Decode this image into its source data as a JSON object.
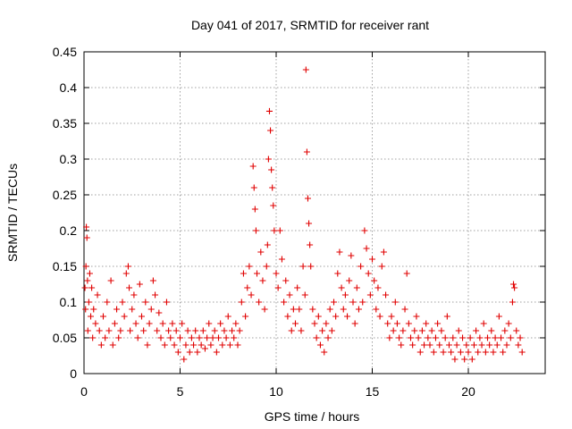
{
  "chart_data": {
    "type": "scatter",
    "title": "Day 041 of 2017, SRMTID for receiver rant",
    "xlabel": "GPS time / hours",
    "ylabel": "SRMTID / TECUs",
    "xlim": [
      0,
      24
    ],
    "ylim": [
      0,
      0.45
    ],
    "x_ticks": [
      0,
      5,
      10,
      15,
      20
    ],
    "x_tick_labels": [
      "0",
      "5",
      "10",
      "15",
      "20"
    ],
    "y_ticks": [
      0,
      0.05,
      0.1,
      0.15,
      0.2,
      0.25,
      0.3,
      0.35,
      0.4,
      0.45
    ],
    "y_tick_labels": [
      "0",
      "0.05",
      "0.1",
      "0.15",
      "0.2",
      "0.25",
      "0.3",
      "0.35",
      "0.4",
      "0.45"
    ],
    "grid": true,
    "marker": "plus",
    "color": "#e00000",
    "series": [
      {
        "name": "SRMTID",
        "points": [
          [
            0.05,
            0.12
          ],
          [
            0.08,
            0.09
          ],
          [
            0.1,
            0.15
          ],
          [
            0.12,
            0.205
          ],
          [
            0.15,
            0.19
          ],
          [
            0.18,
            0.13
          ],
          [
            0.2,
            0.06
          ],
          [
            0.25,
            0.1
          ],
          [
            0.3,
            0.14
          ],
          [
            0.35,
            0.08
          ],
          [
            0.4,
            0.12
          ],
          [
            0.45,
            0.05
          ],
          [
            0.5,
            0.09
          ],
          [
            0.6,
            0.07
          ],
          [
            0.7,
            0.11
          ],
          [
            0.8,
            0.06
          ],
          [
            0.9,
            0.04
          ],
          [
            1.0,
            0.08
          ],
          [
            1.1,
            0.05
          ],
          [
            1.2,
            0.1
          ],
          [
            1.3,
            0.06
          ],
          [
            1.4,
            0.13
          ],
          [
            1.5,
            0.04
          ],
          [
            1.6,
            0.07
          ],
          [
            1.7,
            0.09
          ],
          [
            1.8,
            0.05
          ],
          [
            1.9,
            0.06
          ],
          [
            2.0,
            0.1
          ],
          [
            2.1,
            0.08
          ],
          [
            2.2,
            0.14
          ],
          [
            2.3,
            0.15
          ],
          [
            2.35,
            0.12
          ],
          [
            2.4,
            0.06
          ],
          [
            2.5,
            0.09
          ],
          [
            2.6,
            0.11
          ],
          [
            2.7,
            0.07
          ],
          [
            2.8,
            0.05
          ],
          [
            2.9,
            0.125
          ],
          [
            3.0,
            0.08
          ],
          [
            3.1,
            0.06
          ],
          [
            3.2,
            0.1
          ],
          [
            3.3,
            0.04
          ],
          [
            3.4,
            0.07
          ],
          [
            3.5,
            0.09
          ],
          [
            3.6,
            0.13
          ],
          [
            3.7,
            0.11
          ],
          [
            3.8,
            0.06
          ],
          [
            3.9,
            0.085
          ],
          [
            4.0,
            0.05
          ],
          [
            4.1,
            0.07
          ],
          [
            4.2,
            0.04
          ],
          [
            4.3,
            0.1
          ],
          [
            4.4,
            0.06
          ],
          [
            4.5,
            0.05
          ],
          [
            4.6,
            0.07
          ],
          [
            4.7,
            0.04
          ],
          [
            4.8,
            0.06
          ],
          [
            4.9,
            0.03
          ],
          [
            5.0,
            0.05
          ],
          [
            5.1,
            0.07
          ],
          [
            5.2,
            0.02
          ],
          [
            5.3,
            0.04
          ],
          [
            5.4,
            0.06
          ],
          [
            5.5,
            0.03
          ],
          [
            5.6,
            0.05
          ],
          [
            5.7,
            0.04
          ],
          [
            5.8,
            0.06
          ],
          [
            5.9,
            0.03
          ],
          [
            6.0,
            0.05
          ],
          [
            6.1,
            0.04
          ],
          [
            6.2,
            0.06
          ],
          [
            6.3,
            0.035
          ],
          [
            6.4,
            0.05
          ],
          [
            6.5,
            0.07
          ],
          [
            6.6,
            0.04
          ],
          [
            6.7,
            0.05
          ],
          [
            6.8,
            0.06
          ],
          [
            6.9,
            0.03
          ],
          [
            7.0,
            0.05
          ],
          [
            7.1,
            0.07
          ],
          [
            7.2,
            0.04
          ],
          [
            7.3,
            0.06
          ],
          [
            7.4,
            0.05
          ],
          [
            7.5,
            0.08
          ],
          [
            7.6,
            0.04
          ],
          [
            7.7,
            0.06
          ],
          [
            7.8,
            0.05
          ],
          [
            7.9,
            0.07
          ],
          [
            8.0,
            0.04
          ],
          [
            8.1,
            0.06
          ],
          [
            8.2,
            0.1
          ],
          [
            8.3,
            0.14
          ],
          [
            8.4,
            0.08
          ],
          [
            8.5,
            0.12
          ],
          [
            8.6,
            0.15
          ],
          [
            8.7,
            0.11
          ],
          [
            8.8,
            0.29
          ],
          [
            8.85,
            0.26
          ],
          [
            8.9,
            0.23
          ],
          [
            8.95,
            0.2
          ],
          [
            9.0,
            0.14
          ],
          [
            9.1,
            0.1
          ],
          [
            9.2,
            0.17
          ],
          [
            9.3,
            0.13
          ],
          [
            9.4,
            0.09
          ],
          [
            9.5,
            0.15
          ],
          [
            9.55,
            0.18
          ],
          [
            9.6,
            0.3
          ],
          [
            9.65,
            0.367
          ],
          [
            9.7,
            0.34
          ],
          [
            9.75,
            0.285
          ],
          [
            9.8,
            0.26
          ],
          [
            9.85,
            0.235
          ],
          [
            9.9,
            0.2
          ],
          [
            10.0,
            0.14
          ],
          [
            10.1,
            0.12
          ],
          [
            10.2,
            0.2
          ],
          [
            10.3,
            0.16
          ],
          [
            10.4,
            0.1
          ],
          [
            10.5,
            0.13
          ],
          [
            10.6,
            0.08
          ],
          [
            10.7,
            0.11
          ],
          [
            10.8,
            0.06
          ],
          [
            10.9,
            0.09
          ],
          [
            11.0,
            0.07
          ],
          [
            11.1,
            0.12
          ],
          [
            11.2,
            0.09
          ],
          [
            11.3,
            0.06
          ],
          [
            11.4,
            0.15
          ],
          [
            11.5,
            0.11
          ],
          [
            11.55,
            0.425
          ],
          [
            11.6,
            0.31
          ],
          [
            11.65,
            0.245
          ],
          [
            11.7,
            0.21
          ],
          [
            11.75,
            0.18
          ],
          [
            11.8,
            0.15
          ],
          [
            11.9,
            0.09
          ],
          [
            12.0,
            0.07
          ],
          [
            12.1,
            0.05
          ],
          [
            12.2,
            0.08
          ],
          [
            12.3,
            0.04
          ],
          [
            12.4,
            0.06
          ],
          [
            12.5,
            0.03
          ],
          [
            12.6,
            0.07
          ],
          [
            12.7,
            0.05
          ],
          [
            12.8,
            0.09
          ],
          [
            12.9,
            0.06
          ],
          [
            13.0,
            0.1
          ],
          [
            13.1,
            0.08
          ],
          [
            13.2,
            0.14
          ],
          [
            13.3,
            0.17
          ],
          [
            13.4,
            0.12
          ],
          [
            13.5,
            0.09
          ],
          [
            13.6,
            0.11
          ],
          [
            13.7,
            0.08
          ],
          [
            13.8,
            0.13
          ],
          [
            13.9,
            0.165
          ],
          [
            14.0,
            0.1
          ],
          [
            14.1,
            0.07
          ],
          [
            14.2,
            0.12
          ],
          [
            14.3,
            0.09
          ],
          [
            14.4,
            0.15
          ],
          [
            14.5,
            0.1
          ],
          [
            14.6,
            0.2
          ],
          [
            14.7,
            0.175
          ],
          [
            14.8,
            0.14
          ],
          [
            14.9,
            0.11
          ],
          [
            15.0,
            0.16
          ],
          [
            15.1,
            0.13
          ],
          [
            15.2,
            0.09
          ],
          [
            15.3,
            0.12
          ],
          [
            15.4,
            0.08
          ],
          [
            15.5,
            0.15
          ],
          [
            15.6,
            0.17
          ],
          [
            15.7,
            0.11
          ],
          [
            15.8,
            0.07
          ],
          [
            15.9,
            0.05
          ],
          [
            16.0,
            0.08
          ],
          [
            16.1,
            0.06
          ],
          [
            16.2,
            0.1
          ],
          [
            16.3,
            0.07
          ],
          [
            16.4,
            0.05
          ],
          [
            16.5,
            0.04
          ],
          [
            16.6,
            0.06
          ],
          [
            16.7,
            0.09
          ],
          [
            16.8,
            0.14
          ],
          [
            16.9,
            0.07
          ],
          [
            17.0,
            0.05
          ],
          [
            17.1,
            0.04
          ],
          [
            17.2,
            0.06
          ],
          [
            17.3,
            0.08
          ],
          [
            17.4,
            0.05
          ],
          [
            17.5,
            0.03
          ],
          [
            17.6,
            0.06
          ],
          [
            17.7,
            0.04
          ],
          [
            17.8,
            0.07
          ],
          [
            17.9,
            0.05
          ],
          [
            18.0,
            0.04
          ],
          [
            18.1,
            0.06
          ],
          [
            18.2,
            0.03
          ],
          [
            18.3,
            0.05
          ],
          [
            18.4,
            0.07
          ],
          [
            18.5,
            0.04
          ],
          [
            18.6,
            0.06
          ],
          [
            18.7,
            0.03
          ],
          [
            18.8,
            0.05
          ],
          [
            18.9,
            0.08
          ],
          [
            19.0,
            0.04
          ],
          [
            19.1,
            0.03
          ],
          [
            19.2,
            0.05
          ],
          [
            19.3,
            0.02
          ],
          [
            19.4,
            0.04
          ],
          [
            19.5,
            0.06
          ],
          [
            19.6,
            0.03
          ],
          [
            19.7,
            0.05
          ],
          [
            19.8,
            0.02
          ],
          [
            19.9,
            0.04
          ],
          [
            20.0,
            0.03
          ],
          [
            20.1,
            0.05
          ],
          [
            20.2,
            0.02
          ],
          [
            20.3,
            0.04
          ],
          [
            20.4,
            0.06
          ],
          [
            20.5,
            0.03
          ],
          [
            20.6,
            0.05
          ],
          [
            20.7,
            0.04
          ],
          [
            20.8,
            0.07
          ],
          [
            20.9,
            0.03
          ],
          [
            21.0,
            0.05
          ],
          [
            21.1,
            0.04
          ],
          [
            21.2,
            0.06
          ],
          [
            21.3,
            0.03
          ],
          [
            21.4,
            0.05
          ],
          [
            21.5,
            0.04
          ],
          [
            21.6,
            0.08
          ],
          [
            21.7,
            0.05
          ],
          [
            21.8,
            0.03
          ],
          [
            21.9,
            0.06
          ],
          [
            22.0,
            0.04
          ],
          [
            22.1,
            0.07
          ],
          [
            22.2,
            0.05
          ],
          [
            22.3,
            0.1
          ],
          [
            22.35,
            0.125
          ],
          [
            22.4,
            0.12
          ],
          [
            22.5,
            0.06
          ],
          [
            22.6,
            0.04
          ],
          [
            22.7,
            0.05
          ],
          [
            22.8,
            0.03
          ]
        ]
      }
    ]
  }
}
